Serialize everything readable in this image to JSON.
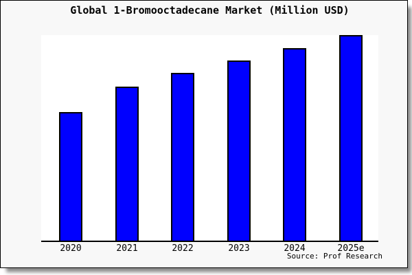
{
  "title": "Global 1-Bromooctadecane Market (Million USD)",
  "source_note": "Source: Prof Research",
  "colors": {
    "bar_fill": "#0000ff",
    "bar_border": "#000000",
    "card_background": "#f8f8f8",
    "plot_background": "#ffffff",
    "axis": "#000000",
    "text": "#000000",
    "shadow": "#8f8f8f"
  },
  "chart_data": {
    "type": "bar",
    "title": "Global 1-Bromooctadecane Market (Million USD)",
    "categories": [
      "2020",
      "2021",
      "2022",
      "2023",
      "2024",
      "2025e"
    ],
    "values": [
      62.8,
      75.2,
      81.6,
      87.7,
      93.6,
      100
    ],
    "xlabel": "",
    "ylabel": "",
    "ylim": [
      0,
      100
    ],
    "value_note": "no y-axis shown; values estimated relative to tallest bar = 100",
    "grid": false,
    "legend": false,
    "source_note": "Source: Prof Research"
  }
}
